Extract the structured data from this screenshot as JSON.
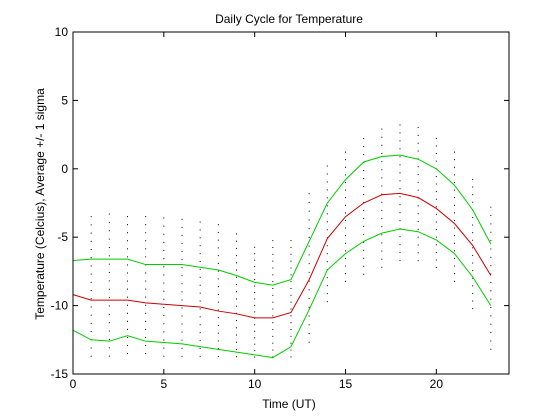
{
  "chart_data": {
    "type": "line",
    "title": "Daily Cycle for Temperature",
    "xlabel": "Time (UT)",
    "ylabel": "Temperature (Celcius), Average +/- 1 sigma",
    "xlim": [
      0,
      24
    ],
    "ylim": [
      -15,
      10
    ],
    "x_ticks": [
      0,
      5,
      10,
      15,
      20
    ],
    "y_ticks": [
      -15,
      -10,
      -5,
      0,
      5,
      10
    ],
    "grid": false,
    "legend": "none",
    "colors": {
      "mean": "#cc0000",
      "sigma": "#00cc00",
      "samples": "#000000",
      "axes": "#000000",
      "background": "#ffffff"
    },
    "x": [
      0,
      1,
      2,
      3,
      4,
      5,
      6,
      7,
      8,
      9,
      10,
      11,
      12,
      13,
      14,
      15,
      16,
      17,
      18,
      19,
      20,
      21,
      22,
      23
    ],
    "series": [
      {
        "role": "mean",
        "values": [
          -9.2,
          -9.6,
          -9.6,
          -9.6,
          -9.8,
          -9.9,
          -10.0,
          -10.1,
          -10.4,
          -10.6,
          -10.9,
          -10.9,
          -10.5,
          -8.1,
          -5.1,
          -3.5,
          -2.5,
          -1.9,
          -1.8,
          -2.1,
          -2.9,
          -4.0,
          -5.6,
          -7.8
        ]
      },
      {
        "role": "upper",
        "values": [
          -6.7,
          -6.6,
          -6.6,
          -6.6,
          -7.0,
          -7.0,
          -7.0,
          -7.2,
          -7.4,
          -7.8,
          -8.3,
          -8.5,
          -8.1,
          -5.3,
          -2.5,
          -0.8,
          0.5,
          0.9,
          1.0,
          0.7,
          0.0,
          -1.2,
          -3.0,
          -5.5
        ]
      },
      {
        "role": "lower",
        "values": [
          -11.8,
          -12.5,
          -12.6,
          -12.2,
          -12.6,
          -12.7,
          -12.8,
          -13.0,
          -13.2,
          -13.4,
          -13.6,
          -13.8,
          -13.0,
          -10.3,
          -7.4,
          -6.2,
          -5.3,
          -4.7,
          -4.4,
          -4.6,
          -5.2,
          -6.2,
          -7.9,
          -10.0
        ]
      }
    ],
    "scatter_range": {
      "low": [
        -13.5,
        -14.0,
        -14.0,
        -13.8,
        -13.8,
        -14.0,
        -14.0,
        -14.0,
        -14.0,
        -14.0,
        -14.0,
        -14.0,
        -14.0,
        -13.0,
        -10.0,
        -8.5,
        -8.0,
        -7.5,
        -7.0,
        -7.0,
        -7.5,
        -8.5,
        -10.5,
        -13.5
      ],
      "high": [
        -3.5,
        -3.2,
        -3.0,
        -3.2,
        -3.2,
        -3.3,
        -3.4,
        -3.6,
        -3.8,
        -4.5,
        -5.5,
        -5.0,
        -5.0,
        -1.5,
        0.5,
        1.5,
        2.5,
        3.2,
        3.5,
        3.3,
        2.5,
        1.5,
        -0.5,
        -2.5
      ]
    },
    "samples_per_hour": 18
  }
}
